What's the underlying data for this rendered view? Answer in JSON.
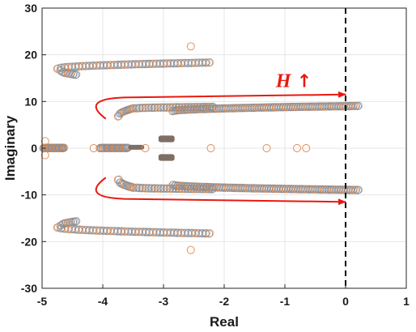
{
  "chart_data": {
    "type": "scatter",
    "title": "",
    "xlabel": "Real",
    "ylabel": "Imaginary",
    "xlim": [
      -5,
      1
    ],
    "ylim": [
      -30,
      30
    ],
    "xticks": [
      -5,
      -4,
      -3,
      -2,
      -1,
      0,
      1
    ],
    "yticks": [
      -30,
      -20,
      -10,
      0,
      10,
      20,
      30
    ],
    "xtick_labels": [
      "-5",
      "-4",
      "-3",
      "-2",
      "-1",
      "0",
      "1"
    ],
    "ytick_labels": [
      "-30",
      "-20",
      "-10",
      "0",
      "10",
      "20",
      "30"
    ],
    "grid": true,
    "marker": "open-circle",
    "colors": {
      "ring_primary": "#e0864a",
      "ring_secondary": "#6f98c8",
      "ring_dense": "#8a8a8a",
      "filled_cluster": "#7d6e66",
      "arrow": "#e8190e",
      "boundary": "#000000"
    },
    "annotation": {
      "text": "H",
      "arrow_glyph": "↑",
      "position": [
        -1.15,
        14.5
      ]
    },
    "stability_boundary_x": 0,
    "arrows": [
      {
        "from": [
          -3.95,
          6.3
        ],
        "via": [
          -4.05,
          10.5
        ],
        "to": [
          0.0,
          11.5
        ]
      },
      {
        "from": [
          -3.95,
          -6.3
        ],
        "via": [
          -4.05,
          -10.5
        ],
        "to": [
          0.0,
          -11.5
        ]
      }
    ],
    "point_groups": [
      {
        "x_start": -4.75,
        "x_end": -2.25,
        "y_start": 17.0,
        "y_end": 18.3,
        "n": 44
      },
      {
        "x_start": -4.7,
        "x_end": -4.45,
        "y_start": 16.6,
        "y_end": 15.7,
        "n": 7
      },
      {
        "x_start": -4.75,
        "x_end": -2.25,
        "y_start": -17.0,
        "y_end": -18.3,
        "n": 44
      },
      {
        "x_start": -4.7,
        "x_end": -4.45,
        "y_start": -16.6,
        "y_end": -15.7,
        "n": 7
      },
      {
        "x_start": -3.75,
        "x_end": -3.5,
        "y_start": 6.8,
        "y_end": 8.5,
        "n": 9
      },
      {
        "x_start": -3.45,
        "x_end": -2.2,
        "y_start": 8.5,
        "y_end": 8.8,
        "n": 26
      },
      {
        "x_start": -2.85,
        "x_end": 0.2,
        "y_start": 7.9,
        "y_end": 9.0,
        "n": 78
      },
      {
        "x_start": -3.75,
        "x_end": -3.5,
        "y_start": -6.8,
        "y_end": -8.5,
        "n": 9
      },
      {
        "x_start": -3.45,
        "x_end": -2.2,
        "y_start": -8.5,
        "y_end": -8.8,
        "n": 26
      },
      {
        "x_start": -2.85,
        "x_end": 0.2,
        "y_start": -7.9,
        "y_end": -9.0,
        "n": 78
      },
      {
        "x_start": -4.98,
        "x_end": -4.65,
        "y_start": 0.0,
        "y_end": 0.0,
        "n": 24
      },
      {
        "x_start": -4.05,
        "x_end": -3.6,
        "y_start": 0.0,
        "y_end": 0.0,
        "n": 22
      }
    ],
    "filled_points": [
      {
        "x": -2.95,
        "y": 2.2
      },
      {
        "x": -2.95,
        "y": 1.8
      },
      {
        "x": -2.95,
        "y": -1.8
      },
      {
        "x": -2.95,
        "y": -2.2
      },
      {
        "x": -3.45,
        "y": 0.2
      }
    ],
    "isolated_points": [
      {
        "x": -4.95,
        "y": 1.5
      },
      {
        "x": -4.95,
        "y": -1.5
      },
      {
        "x": -4.15,
        "y": 0.0
      },
      {
        "x": -3.3,
        "y": 0.0
      },
      {
        "x": -2.22,
        "y": 0.0
      },
      {
        "x": -1.3,
        "y": 0.0
      },
      {
        "x": -0.8,
        "y": 0.0
      },
      {
        "x": -0.65,
        "y": 0.0
      },
      {
        "x": -2.55,
        "y": 21.8
      },
      {
        "x": -2.55,
        "y": -21.8
      }
    ]
  }
}
